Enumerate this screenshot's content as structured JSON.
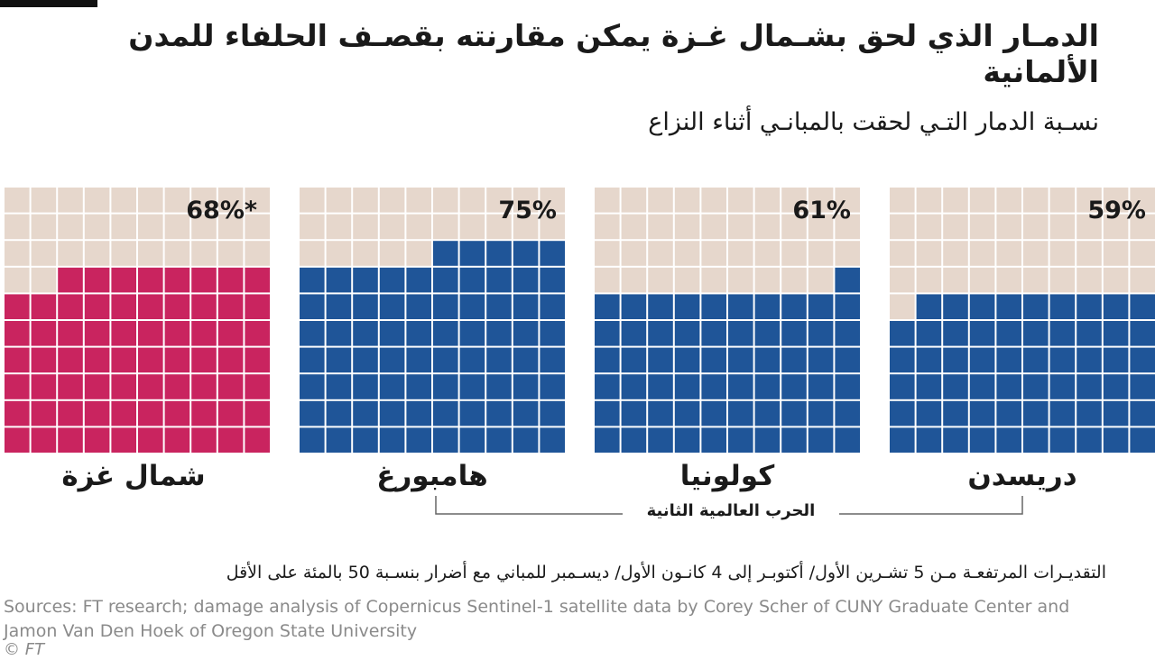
{
  "title": "الدمـار الذي لحق بشـمال غـزة يمكن مقارنته بقصـف الحلفاء للمدن الألمانية",
  "subtitle": "نسـبة الدمار التـي لحقت بالمبانـي أثناء النزاع",
  "bracket_label": "الحرب العالمية الثانية",
  "footnote": "التقديـرات المرتفعـة مـن 5 تشـرين الأول/ أكتوبـر إلى 4 كانـون الأول/ ديسـمبر للمباني مع أضرار بنسـبة 50 بالمئة على الأقل",
  "sources": "Sources: FT research; damage analysis of Copernicus Sentinel-1 satellite data by Corey Scher of CUNY Graduate Center and Jamon Van Den Hoek of Oregon State University",
  "credit": "© FT",
  "colors": {
    "empty": "#e6d7cc",
    "gaza": "#c9245f",
    "germany": "#1f5598",
    "grid_line": "#ffffff"
  },
  "chart_data": {
    "type": "waffle",
    "grid": [
      10,
      10
    ],
    "unit": "%",
    "panels": [
      {
        "city": "شمال غزة",
        "value": 68,
        "label": "68%*",
        "color_key": "gaza"
      },
      {
        "city": "هامبورغ",
        "value": 75,
        "label": "75%",
        "color_key": "germany"
      },
      {
        "city": "كولونيا",
        "value": 61,
        "label": "61%",
        "color_key": "germany"
      },
      {
        "city": "دريسدن",
        "value": 59,
        "label": "59%",
        "color_key": "germany"
      }
    ]
  }
}
